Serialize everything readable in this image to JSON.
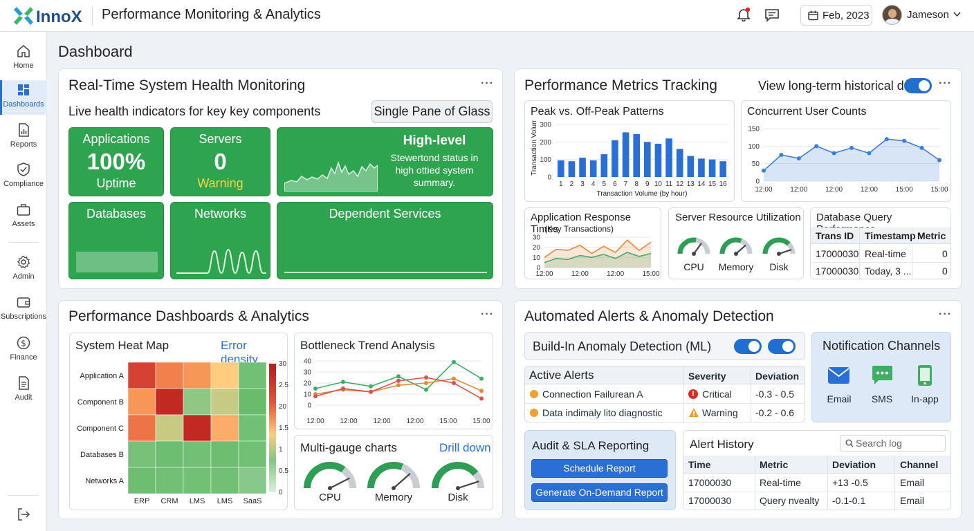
{
  "header": {
    "brand": "InnoX",
    "title": "Performance Monitoring & Analytics",
    "date": "Feb, 2023",
    "user": "Jameson",
    "icons": [
      "bell-icon",
      "chat-icon",
      "calendar-icon",
      "chevron-down-icon"
    ]
  },
  "sidebar": {
    "items": [
      {
        "label": "Home",
        "icon": "home-icon"
      },
      {
        "label": "Dashboards",
        "icon": "dashboard-icon",
        "active": true
      },
      {
        "label": "Reports",
        "icon": "reports-icon"
      },
      {
        "label": "Compliance",
        "icon": "shield-icon"
      },
      {
        "label": "Assets",
        "icon": "briefcase-icon"
      },
      {
        "label": "Admin",
        "icon": "gear-icon"
      },
      {
        "label": "Subscriptions",
        "icon": "wallet-icon"
      },
      {
        "label": "Finance",
        "icon": "dollar-icon"
      },
      {
        "label": "Audit",
        "icon": "document-icon"
      }
    ],
    "logout_icon": "logout-icon"
  },
  "page": {
    "title": "Dashboard"
  },
  "health": {
    "title": "Real-Time System Health Monitoring",
    "subtitle": "Live health indicators for key key components",
    "badge": "Single Pane of Glass",
    "tiles": {
      "applications": {
        "label": "Applications",
        "value": "100%",
        "sub": "Uptime"
      },
      "servers": {
        "label": "Servers",
        "value": "0",
        "sub": "Warning"
      },
      "highlevel": {
        "label": "High-level",
        "desc": "Stewertond status in high ottied system summary."
      },
      "databases": {
        "label": "Databases"
      },
      "networks": {
        "label": "Networks"
      },
      "dependent": {
        "label": "Dependent Services"
      }
    }
  },
  "metrics": {
    "title": "Performance Metrics Tracking",
    "historical_label": "View long-term historical data",
    "peak": {
      "title": "Peak vs. Off-Peak Patterns"
    },
    "concurrent": {
      "title": "Concurrent User Counts"
    },
    "response": {
      "title": "Application Response Times",
      "subtitle": "(Key Transactions)"
    },
    "server": {
      "title": "Server Resource Utilization",
      "gauges": [
        {
          "label": "CPU",
          "value": 0.55
        },
        {
          "label": "Memory",
          "value": 0.62
        },
        {
          "label": "Disk",
          "value": 0.75
        }
      ]
    },
    "dbq": {
      "title": "Database Query Performance",
      "columns": [
        "Trans ID",
        "Timestamp",
        "Metric"
      ],
      "rows": [
        [
          "17000030",
          "Real-time",
          "0"
        ],
        [
          "17000030",
          "Today, 3 ...",
          "0"
        ]
      ]
    }
  },
  "analytics": {
    "title": "Performance Dashboards & Analytics",
    "heatmap": {
      "title": "System Heat Map",
      "link": "Error density",
      "rows": [
        "Application A",
        "Component B",
        "Component C",
        "Databases B",
        "Networks A"
      ],
      "cols": [
        "ERP",
        "CRM",
        "LMS",
        "LMS",
        "SaaS"
      ],
      "scale_labels": [
        "30",
        "2.5",
        "20",
        "1.5",
        "1",
        "0.5",
        "0"
      ]
    },
    "bottleneck": {
      "title": "Bottleneck Trend Analysis"
    },
    "multigauge": {
      "title": "Multi-gauge charts",
      "link": "Drill down",
      "gauges": [
        {
          "label": "CPU",
          "value": 0.7
        },
        {
          "label": "Memory",
          "value": 0.62
        },
        {
          "label": "Disk",
          "value": 0.78
        }
      ]
    }
  },
  "alerts": {
    "title": "Automated Alerts & Anomaly Detection",
    "anomaly_label": "Build-In Anomaly Detection (ML)",
    "active": {
      "columns": [
        "Active Alerts",
        "Severity",
        "Deviation"
      ],
      "rows": [
        {
          "text": "Connection Failurean A",
          "severity": "Critical",
          "deviation": "-0.3 - 0.5"
        },
        {
          "text": "Data indimaly lito diagnostic",
          "severity": "Warning",
          "deviation": "-0.2 - 0.6"
        }
      ]
    },
    "notify": {
      "title": "Notification Channels",
      "channels": [
        {
          "label": "Email",
          "icon": "email-icon"
        },
        {
          "label": "SMS",
          "icon": "sms-icon"
        },
        {
          "label": "In-app",
          "icon": "mobile-icon"
        }
      ]
    },
    "audit": {
      "title": "Audit & SLA Reporting",
      "schedule": "Schedule Report",
      "ondemand": "Generate On-Demand Report"
    },
    "history": {
      "title": "Alert History",
      "search_placeholder": "Search log",
      "columns": [
        "Time",
        "Metric",
        "Deviation",
        "Channel"
      ],
      "rows": [
        [
          "17000030",
          "Real-time",
          "+13 -0.5",
          "Email"
        ],
        [
          "17000030",
          "Query nvealty",
          "-0.1-0.1",
          "Email"
        ]
      ]
    }
  },
  "chart_data": [
    {
      "type": "bar",
      "title": "Peak vs. Off-Peak Patterns",
      "xlabel": "Transaction Volume (by hour)",
      "ylabel": "Transaction Volume",
      "categories": [
        "1",
        "2",
        "3",
        "4",
        "5",
        "6",
        "7",
        "8",
        "9",
        "10",
        "11",
        "12",
        "13",
        "14",
        "15",
        "16"
      ],
      "values": [
        95,
        90,
        110,
        95,
        130,
        210,
        255,
        245,
        200,
        190,
        220,
        160,
        120,
        105,
        100,
        90
      ],
      "yticks": [
        "0",
        "100",
        "200",
        "300"
      ],
      "ylim": [
        0,
        300
      ],
      "color": "#2a6fd6"
    },
    {
      "type": "area",
      "title": "Concurrent User Counts",
      "xticks": [
        "12:00",
        "12:00",
        "12:00",
        "12:00",
        "15:00",
        "15:00"
      ],
      "yticks": [
        "0",
        "50",
        "100",
        "150"
      ],
      "ylim": [
        0,
        150
      ],
      "values": [
        30,
        75,
        65,
        100,
        80,
        95,
        80,
        120,
        115,
        95,
        60
      ],
      "color": "#3b7fd9"
    },
    {
      "type": "area",
      "title": "Application Response Times",
      "xticks": [
        "12:00",
        "12:00",
        "12:00",
        "15:00"
      ],
      "yticks": [
        "0",
        "10",
        "20",
        "30"
      ],
      "ylim": [
        0,
        30
      ],
      "series": [
        {
          "values": [
            10,
            18,
            17,
            22,
            14,
            21,
            15,
            27,
            17,
            25
          ],
          "color": "#e8893a"
        },
        {
          "values": [
            5,
            9,
            8,
            12,
            10,
            13,
            9,
            15,
            11,
            14
          ],
          "color": "#49a964"
        }
      ]
    },
    {
      "type": "line",
      "title": "Bottleneck Trend Analysis",
      "xticks": [
        "12:00",
        "12:00",
        "12:00",
        "12:00",
        "15:00",
        "15:00"
      ],
      "yticks": [
        "0",
        "10",
        "20",
        "30",
        "40"
      ],
      "ylim": [
        0,
        40
      ],
      "series": [
        {
          "values": [
            15,
            21,
            17,
            26,
            14,
            39,
            24
          ],
          "color": "#3fae63"
        },
        {
          "values": [
            10,
            14,
            12,
            18,
            20,
            24,
            13
          ],
          "color": "#e58a3a"
        },
        {
          "values": [
            8,
            15,
            12,
            22,
            25,
            20,
            6
          ],
          "color": "#d9534f"
        }
      ]
    },
    {
      "type": "heatmap",
      "title": "System Heat Map",
      "rows": [
        "Application A",
        "Component B",
        "Component C",
        "Databases B",
        "Networks A"
      ],
      "cols": [
        "ERP",
        "CRM",
        "LMS",
        "LMS",
        "SaaS"
      ],
      "values": [
        [
          27,
          22,
          20,
          15,
          4
        ],
        [
          20,
          29,
          11,
          13,
          5
        ],
        [
          23,
          13,
          29,
          18,
          4
        ],
        [
          8,
          6,
          4,
          6,
          4
        ],
        [
          6,
          7,
          4,
          4,
          3
        ]
      ],
      "range": [
        0,
        30
      ]
    }
  ]
}
